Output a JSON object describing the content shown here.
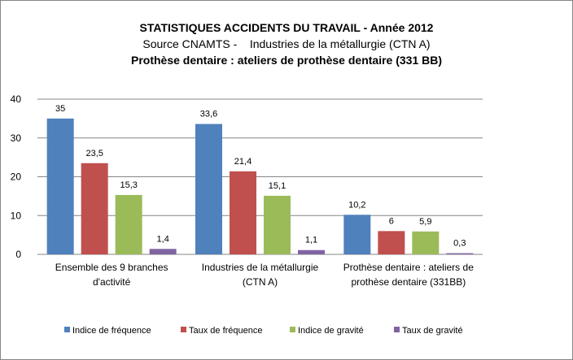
{
  "chart_data": {
    "type": "bar",
    "title": "STATISTIQUES ACCIDENTS DU TRAVAIL - Année 2012",
    "subtitle": "Source CNAMTS -    Industries de la métallurgie (CTN A)",
    "subtitle2": "Prothèse dentaire : ateliers de prothèse dentaire (331 BB)",
    "xlabel": "",
    "ylabel": "",
    "ylim": [
      0,
      40
    ],
    "yticks": [
      0,
      10,
      20,
      30,
      40
    ],
    "grid": true,
    "legend_position": "bottom",
    "categories": [
      [
        "Ensemble des 9 branches",
        "d'activité"
      ],
      [
        "Industries de la métallurgie",
        "(CTN A)"
      ],
      [
        "Prothèse dentaire : ateliers de",
        "prothèse dentaire (331BB)"
      ]
    ],
    "series": [
      {
        "name": "Indice de fréquence",
        "color": "#4f81bd",
        "values": [
          35,
          33.6,
          10.2
        ],
        "labels": [
          "35",
          "33,6",
          "10,2"
        ]
      },
      {
        "name": "Taux de fréquence",
        "color": "#c0504d",
        "values": [
          23.5,
          21.4,
          6
        ],
        "labels": [
          "23,5",
          "21,4",
          "6"
        ]
      },
      {
        "name": "Indice de gravité",
        "color": "#9bbb59",
        "values": [
          15.3,
          15.1,
          5.9
        ],
        "labels": [
          "15,3",
          "15,1",
          "5,9"
        ]
      },
      {
        "name": "Taux de gravité",
        "color": "#8064a2",
        "values": [
          1.4,
          1.1,
          0.3
        ],
        "labels": [
          "1,4",
          "1,1",
          "0,3"
        ]
      }
    ]
  }
}
